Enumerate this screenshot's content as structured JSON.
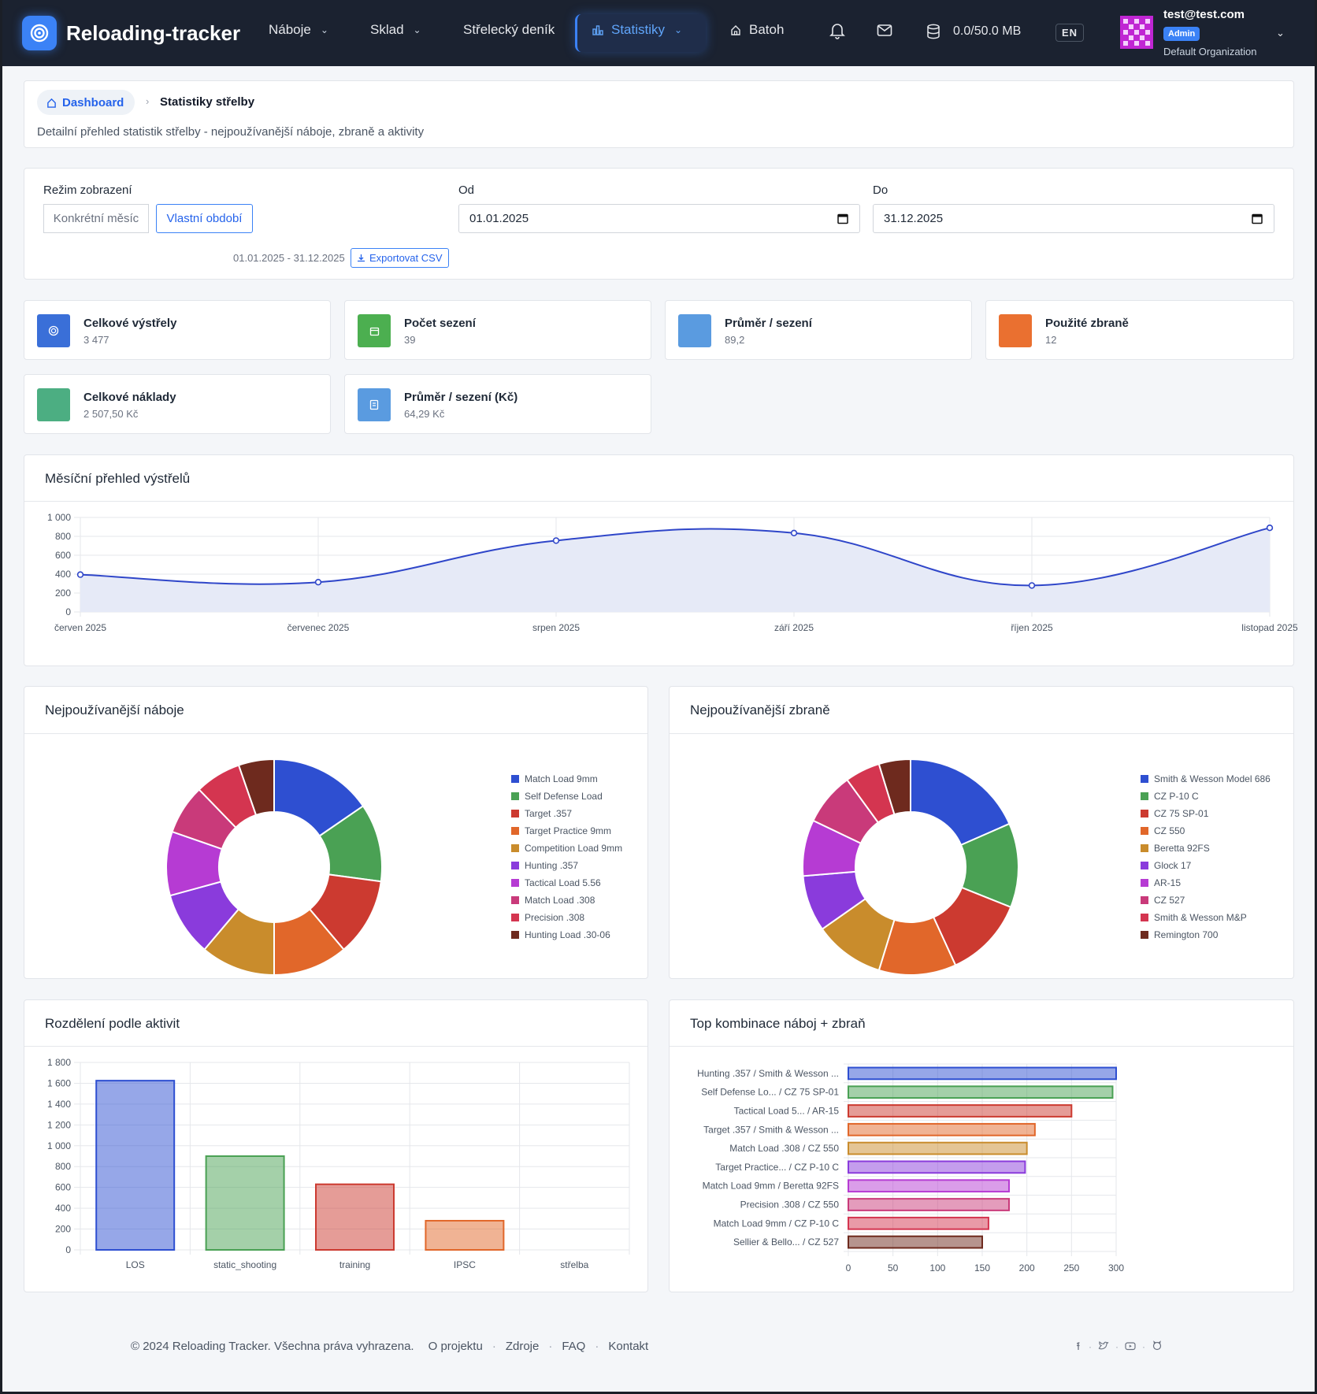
{
  "app": {
    "name": "Reloading-tracker"
  },
  "nav": {
    "items": [
      {
        "label": "Náboje",
        "has_dropdown": true
      },
      {
        "label": "Sklad",
        "has_dropdown": true
      },
      {
        "label": "Střelecký deník",
        "has_dropdown": false
      },
      {
        "label": "Statistiky",
        "has_dropdown": true,
        "active": true
      },
      {
        "label": "Batoh",
        "has_dropdown": false
      }
    ],
    "storage": "0.0/50.0 MB",
    "lang": "EN",
    "user": {
      "email": "test@test.com",
      "role": "Admin",
      "org": "Default Organization"
    }
  },
  "breadcrumb": {
    "home": "Dashboard",
    "current": "Statistiky střelby",
    "description": "Detailní přehled statistik střelby - nejpoužívanější náboje, zbraně a aktivity"
  },
  "filters": {
    "mode_label": "Režim zobrazení",
    "modes": [
      "Konkrétní měsíc",
      "Vlastní období"
    ],
    "active_mode": "Vlastní období",
    "from_label": "Od",
    "from_value": "01.01.2025",
    "to_label": "Do",
    "to_value": "31.12.2025",
    "range_text": "01.01.2025 - 31.12.2025",
    "export_label": "Exportovat CSV"
  },
  "stats": [
    {
      "label": "Celkové výstřely",
      "value": "3 477",
      "color": "#3a6fd8",
      "icon": "target-icon"
    },
    {
      "label": "Počet sezení",
      "value": "39",
      "color": "#4caf50",
      "icon": "calendar-icon"
    },
    {
      "label": "Průměr / sezení",
      "value": "89,2",
      "color": "#5a9be0",
      "icon": "none"
    },
    {
      "label": "Použité zbraně",
      "value": "12",
      "color": "#ea7030",
      "icon": "none"
    },
    {
      "label": "Celkové náklady",
      "value": "2 507,50 Kč",
      "color": "#4cae82",
      "icon": "none"
    },
    {
      "label": "Průměr / sezení (Kč)",
      "value": "64,29 Kč",
      "color": "#5a9be0",
      "icon": "receipt-icon"
    }
  ],
  "sections": {
    "monthly": "Měsíční přehled výstřelů",
    "ammo": "Nejpoužívanější náboje",
    "guns": "Nejpoužívanější zbraně",
    "activities": "Rozdělení podle aktivit",
    "combos": "Top kombinace náboj + zbraň"
  },
  "chart_data": [
    {
      "id": "monthly",
      "type": "line",
      "categories": [
        "červen 2025",
        "červenec 2025",
        "srpen 2025",
        "září 2025",
        "říjen 2025",
        "listopad 2025"
      ],
      "values": [
        395,
        315,
        755,
        835,
        280,
        890
      ],
      "yticks": [
        "0",
        "200",
        "400",
        "600",
        "800",
        "1 000"
      ],
      "ylim": [
        0,
        1000
      ],
      "grid": true,
      "color": "#2f46c9",
      "fill": "#e6eaf7"
    },
    {
      "id": "ammo",
      "type": "pie",
      "donut": true,
      "legend_position": "right",
      "labels": [
        "Match Load 9mm",
        "Self Defense Load",
        "Target .357",
        "Target Practice 9mm",
        "Competition Load 9mm",
        "Hunting .357",
        "Tactical Load 5.56",
        "Match Load .308",
        "Precision .308",
        "Hunting Load .30-06"
      ],
      "values": [
        14.5,
        11.0,
        11.0,
        10.5,
        10.5,
        9.0,
        9.0,
        7.0,
        6.5,
        5.0
      ],
      "colors": [
        "#2e4fd1",
        "#4aa154",
        "#cc3a30",
        "#e1672a",
        "#c98c2c",
        "#8a3bdc",
        "#b63bd3",
        "#c93a7a",
        "#d43550",
        "#6e2a1e"
      ]
    },
    {
      "id": "guns",
      "type": "pie",
      "donut": true,
      "legend_position": "right",
      "labels": [
        "Smith & Wesson Model 686",
        "CZ P-10 C",
        "CZ 75 SP-01",
        "CZ 550",
        "Beretta 92FS",
        "Glock 17",
        "AR-15",
        "CZ 527",
        "Smith & Wesson M&P",
        "Remington 700"
      ],
      "values": [
        17.5,
        12.0,
        11.5,
        11.0,
        10.0,
        8.0,
        8.0,
        7.5,
        5.0,
        4.5
      ],
      "colors": [
        "#2e4fd1",
        "#4aa154",
        "#cc3a30",
        "#e1672a",
        "#c98c2c",
        "#8a3bdc",
        "#b63bd3",
        "#c93a7a",
        "#d43550",
        "#6e2a1e"
      ]
    },
    {
      "id": "activities",
      "type": "bar",
      "categories": [
        "LOS",
        "static_shooting",
        "training",
        "IPSC",
        "střelba"
      ],
      "values": [
        1625,
        900,
        630,
        280,
        0
      ],
      "yticks": [
        "0",
        "200",
        "400",
        "600",
        "800",
        "1 000",
        "1 200",
        "1 400",
        "1 600",
        "1 800"
      ],
      "ylim": [
        0,
        1800
      ],
      "grid": true,
      "colors": [
        "#2e4fd1",
        "#4aa154",
        "#cc3a30",
        "#e1672a",
        "#c98c2c"
      ]
    },
    {
      "id": "combos",
      "type": "bar",
      "orientation": "horizontal",
      "categories": [
        "Hunting .357 / Smith & Wesson ...",
        "Self Defense Lo... / CZ 75 SP-01",
        "Tactical Load 5... / AR-15",
        "Target .357 / Smith & Wesson ...",
        "Match Load .308 / CZ 550",
        "Target Practice... / CZ P-10 C",
        "Match Load 9mm / Beretta 92FS",
        "Precision .308 / CZ 550",
        "Match Load 9mm / CZ P-10 C",
        "Sellier & Bello... / CZ 527"
      ],
      "values": [
        300,
        296,
        250,
        209,
        200,
        198,
        180,
        180,
        157,
        150
      ],
      "xticks": [
        "0",
        "50",
        "100",
        "150",
        "200",
        "250",
        "300"
      ],
      "xlim": [
        0,
        300
      ],
      "grid": true,
      "colors": [
        "#2e4fd1",
        "#4aa154",
        "#cc3a30",
        "#e1672a",
        "#c98c2c",
        "#8a3bdc",
        "#b63bd3",
        "#c93a7a",
        "#d43550",
        "#6e2a1e"
      ]
    }
  ],
  "footer": {
    "copyright": "© 2024 Reloading Tracker. Všechna práva vyhrazena.",
    "links": [
      "O projektu",
      "Zdroje",
      "FAQ",
      "Kontakt"
    ],
    "social": [
      "facebook-icon",
      "twitter-icon",
      "youtube-icon",
      "github-icon"
    ]
  }
}
